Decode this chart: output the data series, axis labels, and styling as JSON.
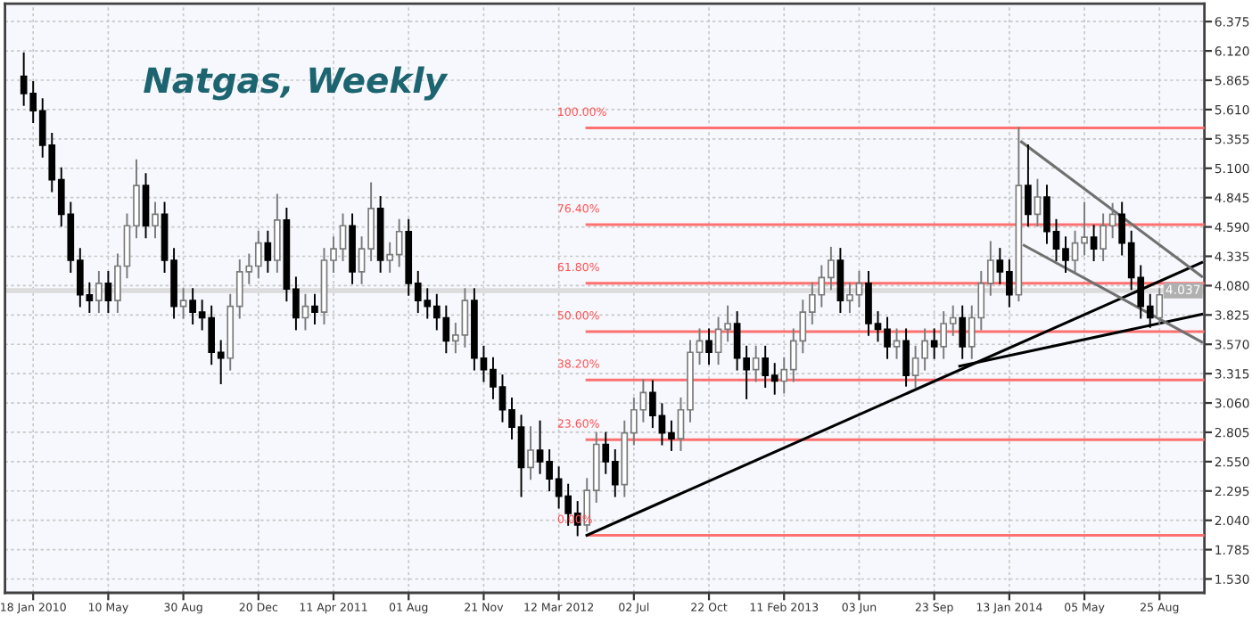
{
  "chart_data": {
    "type": "candlestick",
    "title": "Natgas, Weekly",
    "x": [
      "2010-01-04",
      "2010-01-18",
      "2010-02-01",
      "2010-02-15",
      "2010-03-01",
      "2010-03-15",
      "2010-03-29",
      "2010-04-12",
      "2010-04-26",
      "2010-05-10",
      "2010-05-24",
      "2010-06-07",
      "2010-06-21",
      "2010-07-05",
      "2010-07-19",
      "2010-08-02",
      "2010-08-16",
      "2010-08-30",
      "2010-09-13",
      "2010-09-27",
      "2010-10-11",
      "2010-10-25",
      "2010-11-08",
      "2010-11-22",
      "2010-12-06",
      "2010-12-20",
      "2011-01-03",
      "2011-01-17",
      "2011-01-31",
      "2011-02-14",
      "2011-02-28",
      "2011-03-14",
      "2011-03-28",
      "2011-04-11",
      "2011-04-25",
      "2011-05-09",
      "2011-05-23",
      "2011-06-06",
      "2011-06-20",
      "2011-07-04",
      "2011-07-18",
      "2011-08-01",
      "2011-08-15",
      "2011-08-29",
      "2011-09-12",
      "2011-09-26",
      "2011-10-10",
      "2011-10-24",
      "2011-11-07",
      "2011-11-21",
      "2011-12-05",
      "2011-12-19",
      "2012-01-02",
      "2012-01-16",
      "2012-01-30",
      "2012-02-13",
      "2012-02-27",
      "2012-03-12",
      "2012-03-26",
      "2012-04-09",
      "2012-04-23",
      "2012-05-07",
      "2012-05-21",
      "2012-06-04",
      "2012-06-18",
      "2012-07-02",
      "2012-07-16",
      "2012-07-30",
      "2012-08-13",
      "2012-08-27",
      "2012-09-10",
      "2012-09-24",
      "2012-10-08",
      "2012-10-22",
      "2012-11-05",
      "2012-11-19",
      "2012-12-03",
      "2012-12-17",
      "2012-12-31",
      "2013-01-14",
      "2013-01-28",
      "2013-02-11",
      "2013-02-25",
      "2013-03-11",
      "2013-03-25",
      "2013-04-08",
      "2013-04-22",
      "2013-05-06",
      "2013-05-20",
      "2013-06-03",
      "2013-06-17",
      "2013-07-01",
      "2013-07-15",
      "2013-07-29",
      "2013-08-12",
      "2013-08-26",
      "2013-09-09",
      "2013-09-23",
      "2013-10-07",
      "2013-10-21",
      "2013-11-04",
      "2013-11-18",
      "2013-12-02",
      "2013-12-16",
      "2013-12-30",
      "2014-01-13",
      "2014-01-27",
      "2014-02-10",
      "2014-02-24",
      "2014-03-10",
      "2014-03-24",
      "2014-04-07",
      "2014-04-21",
      "2014-05-05",
      "2014-05-19",
      "2014-06-02",
      "2014-06-16",
      "2014-06-30",
      "2014-07-14",
      "2014-07-28",
      "2014-08-11",
      "2014-08-25"
    ],
    "ohlc": [
      [
        5.9,
        6.1,
        5.65,
        5.75
      ],
      [
        5.75,
        5.85,
        5.5,
        5.6
      ],
      [
        5.6,
        5.7,
        5.2,
        5.3
      ],
      [
        5.3,
        5.4,
        4.9,
        5.0
      ],
      [
        5.0,
        5.1,
        4.6,
        4.7
      ],
      [
        4.7,
        4.8,
        4.2,
        4.3
      ],
      [
        4.3,
        4.4,
        3.9,
        4.0
      ],
      [
        4.0,
        4.1,
        3.85,
        3.95
      ],
      [
        3.95,
        4.2,
        3.85,
        4.1
      ],
      [
        4.1,
        4.2,
        3.85,
        3.95
      ],
      [
        3.95,
        4.35,
        3.85,
        4.25
      ],
      [
        4.25,
        4.7,
        4.15,
        4.6
      ],
      [
        4.6,
        5.17,
        4.5,
        4.95
      ],
      [
        4.95,
        5.05,
        4.5,
        4.6
      ],
      [
        4.6,
        4.8,
        4.5,
        4.7
      ],
      [
        4.7,
        4.8,
        4.2,
        4.3
      ],
      [
        4.3,
        4.4,
        3.8,
        3.9
      ],
      [
        3.9,
        4.05,
        3.8,
        3.95
      ],
      [
        3.95,
        4.05,
        3.75,
        3.85
      ],
      [
        3.85,
        3.95,
        3.7,
        3.8
      ],
      [
        3.8,
        3.9,
        3.4,
        3.5
      ],
      [
        3.5,
        3.6,
        3.23,
        3.45
      ],
      [
        3.45,
        4.0,
        3.35,
        3.9
      ],
      [
        3.9,
        4.3,
        3.8,
        4.2
      ],
      [
        4.2,
        4.35,
        4.1,
        4.25
      ],
      [
        4.25,
        4.55,
        4.15,
        4.45
      ],
      [
        4.45,
        4.55,
        4.2,
        4.3
      ],
      [
        4.3,
        4.87,
        4.2,
        4.65
      ],
      [
        4.65,
        4.75,
        3.95,
        4.05
      ],
      [
        4.05,
        4.15,
        3.7,
        3.8
      ],
      [
        3.8,
        4.0,
        3.7,
        3.9
      ],
      [
        3.9,
        4.0,
        3.75,
        3.85
      ],
      [
        3.85,
        4.4,
        3.75,
        4.3
      ],
      [
        4.3,
        4.5,
        4.2,
        4.4
      ],
      [
        4.4,
        4.7,
        4.3,
        4.6
      ],
      [
        4.6,
        4.7,
        4.1,
        4.2
      ],
      [
        4.2,
        4.5,
        4.1,
        4.4
      ],
      [
        4.4,
        4.97,
        4.3,
        4.75
      ],
      [
        4.75,
        4.85,
        4.2,
        4.3
      ],
      [
        4.3,
        4.45,
        4.2,
        4.35
      ],
      [
        4.35,
        4.65,
        4.25,
        4.55
      ],
      [
        4.55,
        4.65,
        4.0,
        4.1
      ],
      [
        4.1,
        4.2,
        3.85,
        3.95
      ],
      [
        3.95,
        4.05,
        3.8,
        3.9
      ],
      [
        3.9,
        4.0,
        3.7,
        3.8
      ],
      [
        3.8,
        3.9,
        3.5,
        3.6
      ],
      [
        3.6,
        3.75,
        3.5,
        3.65
      ],
      [
        3.65,
        4.05,
        3.55,
        3.95
      ],
      [
        3.95,
        4.05,
        3.35,
        3.45
      ],
      [
        3.45,
        3.55,
        3.25,
        3.35
      ],
      [
        3.35,
        3.45,
        3.1,
        3.2
      ],
      [
        3.2,
        3.3,
        2.9,
        3.0
      ],
      [
        3.0,
        3.1,
        2.75,
        2.85
      ],
      [
        2.85,
        2.95,
        2.25,
        2.5
      ],
      [
        2.5,
        2.85,
        2.4,
        2.65
      ],
      [
        2.65,
        2.9,
        2.45,
        2.55
      ],
      [
        2.55,
        2.65,
        2.3,
        2.4
      ],
      [
        2.4,
        2.5,
        2.15,
        2.25
      ],
      [
        2.25,
        2.35,
        2.0,
        2.1
      ],
      [
        2.1,
        2.2,
        1.91,
        2.0
      ],
      [
        2.0,
        2.4,
        1.95,
        2.3
      ],
      [
        2.3,
        2.8,
        2.2,
        2.7
      ],
      [
        2.7,
        2.8,
        2.45,
        2.55
      ],
      [
        2.55,
        2.65,
        2.25,
        2.35
      ],
      [
        2.35,
        2.9,
        2.25,
        2.8
      ],
      [
        2.8,
        3.1,
        2.7,
        3.0
      ],
      [
        3.0,
        3.26,
        2.9,
        3.15
      ],
      [
        3.15,
        3.25,
        2.85,
        2.95
      ],
      [
        2.95,
        3.05,
        2.7,
        2.8
      ],
      [
        2.8,
        2.9,
        2.65,
        2.75
      ],
      [
        2.75,
        3.1,
        2.65,
        3.0
      ],
      [
        3.0,
        3.6,
        2.9,
        3.5
      ],
      [
        3.5,
        3.7,
        3.4,
        3.6
      ],
      [
        3.6,
        3.7,
        3.4,
        3.5
      ],
      [
        3.5,
        3.8,
        3.4,
        3.7
      ],
      [
        3.7,
        3.9,
        3.6,
        3.75
      ],
      [
        3.75,
        3.85,
        3.35,
        3.45
      ],
      [
        3.45,
        3.55,
        3.1,
        3.35
      ],
      [
        3.35,
        3.55,
        3.25,
        3.45
      ],
      [
        3.45,
        3.55,
        3.2,
        3.3
      ],
      [
        3.3,
        3.4,
        3.14,
        3.25
      ],
      [
        3.25,
        3.45,
        3.15,
        3.35
      ],
      [
        3.35,
        3.7,
        3.25,
        3.6
      ],
      [
        3.6,
        3.95,
        3.5,
        3.85
      ],
      [
        3.85,
        4.1,
        3.75,
        4.0
      ],
      [
        4.0,
        4.25,
        3.9,
        4.15
      ],
      [
        4.15,
        4.41,
        4.05,
        4.3
      ],
      [
        4.3,
        4.4,
        3.85,
        3.95
      ],
      [
        3.95,
        4.1,
        3.85,
        4.0
      ],
      [
        4.0,
        4.2,
        3.9,
        4.1
      ],
      [
        4.1,
        4.2,
        3.65,
        3.75
      ],
      [
        3.75,
        3.85,
        3.6,
        3.7
      ],
      [
        3.7,
        3.8,
        3.45,
        3.55
      ],
      [
        3.55,
        3.7,
        3.45,
        3.6
      ],
      [
        3.6,
        3.7,
        3.21,
        3.3
      ],
      [
        3.3,
        3.55,
        3.2,
        3.45
      ],
      [
        3.45,
        3.7,
        3.35,
        3.6
      ],
      [
        3.6,
        3.7,
        3.45,
        3.55
      ],
      [
        3.55,
        3.85,
        3.45,
        3.75
      ],
      [
        3.75,
        3.9,
        3.65,
        3.8
      ],
      [
        3.8,
        3.9,
        3.45,
        3.55
      ],
      [
        3.55,
        3.9,
        3.45,
        3.8
      ],
      [
        3.8,
        4.2,
        3.7,
        4.1
      ],
      [
        4.1,
        4.46,
        4.0,
        4.3
      ],
      [
        4.3,
        4.4,
        4.1,
        4.2
      ],
      [
        4.2,
        4.3,
        3.9,
        4.0
      ],
      [
        4.0,
        5.45,
        3.95,
        4.95
      ],
      [
        4.95,
        5.3,
        4.6,
        4.7
      ],
      [
        4.7,
        5.0,
        4.6,
        4.85
      ],
      [
        4.85,
        4.95,
        4.45,
        4.55
      ],
      [
        4.55,
        4.65,
        4.3,
        4.4
      ],
      [
        4.4,
        4.5,
        4.2,
        4.3
      ],
      [
        4.3,
        4.55,
        4.2,
        4.45
      ],
      [
        4.45,
        4.8,
        4.35,
        4.5
      ],
      [
        4.5,
        4.6,
        4.3,
        4.4
      ],
      [
        4.4,
        4.7,
        4.3,
        4.6
      ],
      [
        4.6,
        4.79,
        4.5,
        4.7
      ],
      [
        4.7,
        4.8,
        4.35,
        4.45
      ],
      [
        4.45,
        4.55,
        4.05,
        4.15
      ],
      [
        4.15,
        4.25,
        3.8,
        3.9
      ],
      [
        3.9,
        4.0,
        3.72,
        3.8
      ],
      [
        3.8,
        4.05,
        3.75,
        4.0
      ]
    ],
    "series": [
      {
        "type": "line",
        "color": "#ff7070",
        "x": [
          "2012-04-23",
          "2014-10-31"
        ],
        "values": [
          5.45,
          5.45
        ]
      },
      {
        "type": "line",
        "color": "#ff7070",
        "x": [
          "2012-04-23",
          "2014-10-31"
        ],
        "values": [
          4.61,
          4.61
        ]
      },
      {
        "type": "line",
        "color": "#ff7070",
        "x": [
          "2012-04-23",
          "2014-10-31"
        ],
        "values": [
          4.1,
          4.1
        ]
      },
      {
        "type": "line",
        "color": "#ff7070",
        "x": [
          "2012-04-23",
          "2014-10-31"
        ],
        "values": [
          3.68,
          3.68
        ]
      },
      {
        "type": "line",
        "color": "#ff7070",
        "x": [
          "2012-04-23",
          "2014-10-31"
        ],
        "values": [
          3.26,
          3.26
        ]
      },
      {
        "type": "line",
        "color": "#ff7070",
        "x": [
          "2012-04-23",
          "2014-10-31"
        ],
        "values": [
          2.74,
          2.74
        ]
      },
      {
        "type": "line",
        "color": "#ff7070",
        "x": [
          "2012-04-23",
          "2014-10-31"
        ],
        "values": [
          1.91,
          1.91
        ]
      },
      {
        "type": "line",
        "color": "#000000",
        "x": [
          "2012-04-23",
          "2014-10-27"
        ],
        "values": [
          1.91,
          4.28
        ]
      },
      {
        "type": "line",
        "color": "#000000",
        "x": [
          "2013-10-31",
          "2014-10-27"
        ],
        "values": [
          3.38,
          3.83
        ]
      },
      {
        "type": "line",
        "color": "#707070",
        "x": [
          "2014-01-31",
          "2014-10-27"
        ],
        "values": [
          5.33,
          4.16
        ]
      },
      {
        "type": "line",
        "color": "#707070",
        "x": [
          "2014-02-04",
          "2014-10-27"
        ],
        "values": [
          4.43,
          3.59
        ]
      }
    ],
    "annotations": [
      {
        "text": "100.00%",
        "x": "2012-04-23",
        "y": 5.45
      },
      {
        "text": "76.40%",
        "x": "2012-04-23",
        "y": 4.61
      },
      {
        "text": "61.80%",
        "x": "2012-04-23",
        "y": 4.1
      },
      {
        "text": "50.00%",
        "x": "2012-04-23",
        "y": 3.68
      },
      {
        "text": "38.20%",
        "x": "2012-04-23",
        "y": 3.26
      },
      {
        "text": "23.60%",
        "x": "2012-04-23",
        "y": 2.74
      },
      {
        "text": "0.00%",
        "x": "2012-04-23",
        "y": 1.91
      }
    ],
    "ref_lines": [
      {
        "axis": "y",
        "value": 4.037,
        "label": "4.037",
        "color": "#dcdcdc"
      }
    ],
    "xlim": [
      "2009-12-07",
      "2014-10-31"
    ],
    "xticks": [
      {
        "value": "2010-01-18",
        "label": "18 Jan 2010"
      },
      {
        "value": "2010-05-10",
        "label": "10 May"
      },
      {
        "value": "2010-08-30",
        "label": "30 Aug"
      },
      {
        "value": "2010-12-20",
        "label": "20 Dec"
      },
      {
        "value": "2011-04-11",
        "label": "11 Apr 2011"
      },
      {
        "value": "2011-08-01",
        "label": "01 Aug"
      },
      {
        "value": "2011-11-21",
        "label": "21 Nov"
      },
      {
        "value": "2012-03-12",
        "label": "12 Mar 2012"
      },
      {
        "value": "2012-07-02",
        "label": "02 Jul"
      },
      {
        "value": "2012-10-22",
        "label": "22 Oct"
      },
      {
        "value": "2013-02-11",
        "label": "11 Feb 2013"
      },
      {
        "value": "2013-06-03",
        "label": "03 Jun"
      },
      {
        "value": "2013-09-23",
        "label": "23 Sep"
      },
      {
        "value": "2014-01-13",
        "label": "13 Jan 2014"
      },
      {
        "value": "2014-05-05",
        "label": "05 May"
      },
      {
        "value": "2014-08-25",
        "label": "25 Aug"
      }
    ],
    "ylim": [
      1.41,
      6.53
    ],
    "yticks": [
      {
        "value": 1.53,
        "label": "1.530"
      },
      1.785,
      {
        "value": 2.04,
        "label": "2.040"
      },
      2.295,
      {
        "value": 2.55,
        "label": "2.550"
      },
      2.805,
      {
        "value": 3.06,
        "label": "3.060"
      },
      3.315,
      {
        "value": 3.57,
        "label": "3.570"
      },
      3.825,
      {
        "value": 4.08,
        "label": "4.080"
      },
      4.335,
      {
        "value": 4.59,
        "label": "4.590"
      },
      4.845,
      {
        "value": 5.1,
        "label": "5.100"
      },
      5.355,
      {
        "value": 5.61,
        "label": "5.610"
      },
      5.865,
      {
        "value": 6.12,
        "label": "6.120"
      },
      6.375
    ],
    "grid": true
  }
}
